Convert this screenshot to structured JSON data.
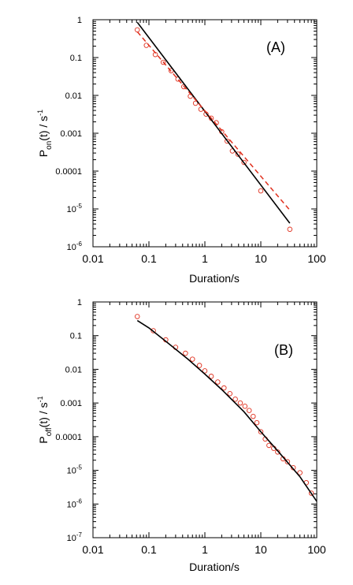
{
  "chart_data": [
    {
      "type": "scatter",
      "panel_label": "(A)",
      "xlabel": "Duration/s",
      "ylabel": {
        "main": "P",
        "sub": "on",
        "rest": "(t) / s",
        "sup": "-1"
      },
      "x_scale": "log",
      "y_scale": "log",
      "xlim": [
        0.01,
        100
      ],
      "ylim": [
        1e-06,
        1
      ],
      "x_ticks": [
        "0.01",
        "0.1",
        "1",
        "10",
        "100"
      ],
      "y_ticks": [
        {
          "value": 1,
          "label": "1"
        },
        {
          "value": 0.1,
          "label": "0.1"
        },
        {
          "value": 0.01,
          "label": "0.01"
        },
        {
          "value": 0.001,
          "label": "0.001"
        },
        {
          "value": 0.0001,
          "label": "0.0001"
        },
        {
          "value": 1e-05,
          "label": "10",
          "exp": "-5"
        },
        {
          "value": 1e-06,
          "label": "10",
          "exp": "-6"
        }
      ],
      "series": [
        {
          "style": "markers",
          "color": "#e0301e",
          "x": [
            0.062,
            0.09,
            0.13,
            0.18,
            0.25,
            0.33,
            0.42,
            0.55,
            0.68,
            0.85,
            1.05,
            1.3,
            1.6,
            2.0,
            2.5,
            3.1,
            3.9,
            5.0,
            10.0,
            33.0
          ],
          "y": [
            0.54,
            0.21,
            0.12,
            0.075,
            0.045,
            0.027,
            0.017,
            0.0095,
            0.0062,
            0.0043,
            0.0032,
            0.0025,
            0.0019,
            0.0011,
            0.00062,
            0.00034,
            0.00028,
            0.00017,
            3e-05,
            2.9e-06
          ]
        },
        {
          "style": "solid",
          "color": "#000000",
          "x": [
            0.062,
            33
          ],
          "y": [
            0.85,
            4.2e-06
          ]
        },
        {
          "style": "dashed",
          "color": "#e0301e",
          "x": [
            0.062,
            33
          ],
          "y": [
            0.48,
            9.3e-06
          ]
        }
      ]
    },
    {
      "type": "scatter",
      "panel_label": "(B)",
      "xlabel": "Duration/s",
      "ylabel": {
        "main": "P",
        "sub": "off",
        "rest": "(t) / s",
        "sup": "-1"
      },
      "x_scale": "log",
      "y_scale": "log",
      "xlim": [
        0.01,
        100
      ],
      "ylim": [
        1e-07,
        1
      ],
      "x_ticks": [
        "0.01",
        "0.1",
        "1",
        "10",
        "100"
      ],
      "y_ticks": [
        {
          "value": 1,
          "label": "1"
        },
        {
          "value": 0.1,
          "label": "0.1"
        },
        {
          "value": 0.01,
          "label": "0.01"
        },
        {
          "value": 0.001,
          "label": "0.001"
        },
        {
          "value": 0.0001,
          "label": "0.0001"
        },
        {
          "value": 1e-05,
          "label": "10",
          "exp": "-5"
        },
        {
          "value": 1e-06,
          "label": "10",
          "exp": "-6"
        },
        {
          "value": 1e-07,
          "label": "10",
          "exp": "-7"
        }
      ],
      "series": [
        {
          "style": "markers",
          "color": "#e0301e",
          "x": [
            0.062,
            0.12,
            0.2,
            0.3,
            0.45,
            0.6,
            0.8,
            1.0,
            1.3,
            1.7,
            2.2,
            2.8,
            3.5,
            4.3,
            5.2,
            6.2,
            7.3,
            8.5,
            10,
            12,
            14,
            17,
            20,
            25,
            30,
            38,
            50,
            65,
            80
          ],
          "y": [
            0.37,
            0.14,
            0.075,
            0.045,
            0.03,
            0.02,
            0.013,
            0.009,
            0.0062,
            0.0042,
            0.0028,
            0.0019,
            0.0013,
            0.001,
            0.0008,
            0.0006,
            0.0004,
            0.00026,
            0.00014,
            8.5e-05,
            5.5e-05,
            4.5e-05,
            3.5e-05,
            2.2e-05,
            1.8e-05,
            1.2e-05,
            8.5e-06,
            4.3e-06,
            2.1e-06
          ]
        },
        {
          "style": "solid",
          "color": "#000000",
          "x": [
            0.062,
            0.1,
            0.2,
            0.5,
            1,
            2,
            5,
            10,
            20,
            50,
            100
          ],
          "y": [
            0.28,
            0.17,
            0.068,
            0.02,
            0.0072,
            0.0025,
            0.00055,
            0.00014,
            3.8e-05,
            6.5e-06,
            1.2e-06
          ]
        }
      ]
    }
  ]
}
